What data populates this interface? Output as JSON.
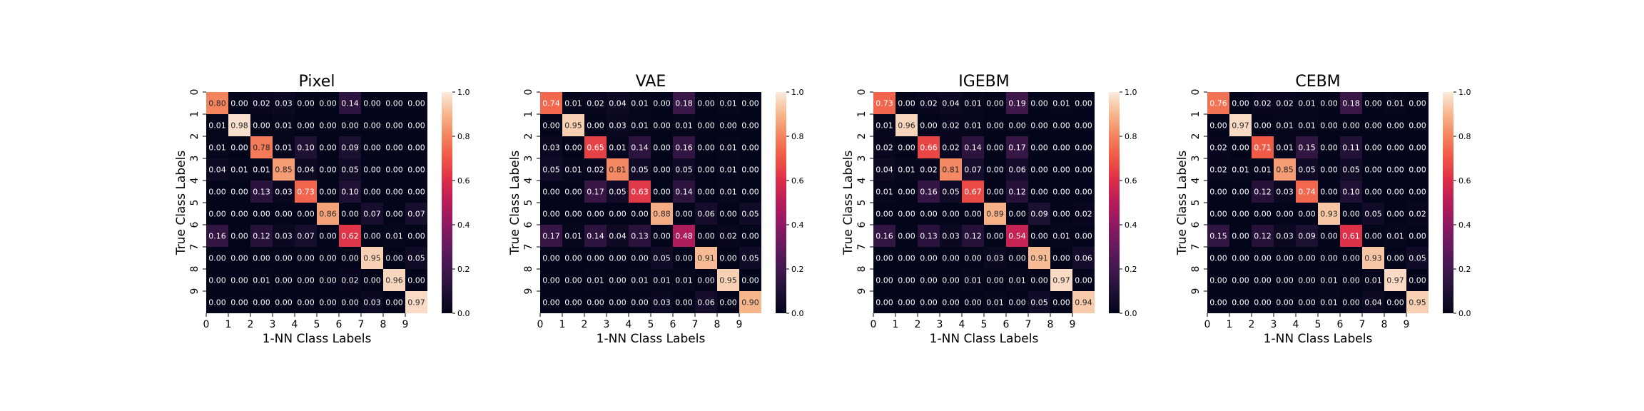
{
  "chart_data": [
    {
      "type": "heatmap",
      "title": "Pixel",
      "xlabel": "1-NN Class Labels",
      "ylabel": "True Class Labels",
      "x_ticks": [
        "0",
        "1",
        "2",
        "3",
        "4",
        "5",
        "6",
        "7",
        "8",
        "9"
      ],
      "y_ticks": [
        "0",
        "1",
        "2",
        "3",
        "4",
        "5",
        "6",
        "7",
        "8",
        "9"
      ],
      "colorbar": {
        "range": [
          0,
          1
        ],
        "ticks": [
          "0.0",
          "0.2",
          "0.4",
          "0.6",
          "0.8",
          "1.0"
        ]
      },
      "cell_labels": [
        [
          "0.80",
          "0.00",
          "0.02",
          "0.03",
          "0.00",
          "0.00",
          "0.14",
          "0.00",
          "0.00",
          "0.00"
        ],
        [
          "0.01",
          "0.98",
          "0.00",
          "0.01",
          "0.00",
          "0.00",
          "0.00",
          "0.00",
          "0.00",
          "0.00"
        ],
        [
          "0.01",
          "0.00",
          "0.78",
          "0.01",
          "0.10",
          "0.00",
          "0.09",
          "0.00",
          "0.00",
          "0.00"
        ],
        [
          "0.04",
          "0.01",
          "0.01",
          "0.85",
          "0.04",
          "0.00",
          "0.05",
          "0.00",
          "0.00",
          "0.00"
        ],
        [
          "0.00",
          "0.00",
          "0.13",
          "0.03",
          "0.73",
          "0.00",
          "0.10",
          "0.00",
          "0.00",
          "0.00"
        ],
        [
          "0.00",
          "0.00",
          "0.00",
          "0.00",
          "0.00",
          "0.86",
          "0.00",
          "0.07",
          "0.00",
          "0.07"
        ],
        [
          "0.16",
          "0.00",
          "0.12",
          "0.03",
          "0.07",
          "0.00",
          "0.62",
          "0.00",
          "0.01",
          "0.00"
        ],
        [
          "0.00",
          "0.00",
          "0.00",
          "0.00",
          "0.00",
          "0.00",
          "0.00",
          "0.95",
          "0.00",
          "0.05"
        ],
        [
          "0.00",
          "0.00",
          "0.01",
          "0.00",
          "0.00",
          "0.00",
          "0.02",
          "0.00",
          "0.96",
          "0.00"
        ],
        [
          "0.00",
          "0.00",
          "0.00",
          "0.00",
          "0.00",
          "0.00",
          "0.00",
          "0.03",
          "0.00",
          "0.97"
        ]
      ]
    },
    {
      "type": "heatmap",
      "title": "VAE",
      "xlabel": "1-NN Class Labels",
      "ylabel": "True Class Labels",
      "x_ticks": [
        "0",
        "1",
        "2",
        "3",
        "4",
        "5",
        "6",
        "7",
        "8",
        "9"
      ],
      "y_ticks": [
        "0",
        "1",
        "2",
        "3",
        "4",
        "5",
        "6",
        "7",
        "8",
        "9"
      ],
      "colorbar": {
        "range": [
          0,
          1
        ],
        "ticks": [
          "0.0",
          "0.2",
          "0.4",
          "0.6",
          "0.8",
          "1.0"
        ]
      },
      "cell_labels": [
        [
          "0.74",
          "0.01",
          "0.02",
          "0.04",
          "0.01",
          "0.00",
          "0.18",
          "0.00",
          "0.01",
          "0.00"
        ],
        [
          "0.00",
          "0.95",
          "0.00",
          "0.03",
          "0.01",
          "0.00",
          "0.01",
          "0.00",
          "0.00",
          "0.00"
        ],
        [
          "0.03",
          "0.00",
          "0.65",
          "0.01",
          "0.14",
          "0.00",
          "0.16",
          "0.00",
          "0.01",
          "0.00"
        ],
        [
          "0.05",
          "0.01",
          "0.02",
          "0.81",
          "0.05",
          "0.00",
          "0.05",
          "0.00",
          "0.01",
          "0.00"
        ],
        [
          "0.00",
          "0.00",
          "0.17",
          "0.05",
          "0.63",
          "0.00",
          "0.14",
          "0.00",
          "0.01",
          "0.00"
        ],
        [
          "0.00",
          "0.00",
          "0.00",
          "0.00",
          "0.00",
          "0.88",
          "0.00",
          "0.06",
          "0.00",
          "0.05"
        ],
        [
          "0.17",
          "0.01",
          "0.14",
          "0.04",
          "0.13",
          "0.00",
          "0.48",
          "0.00",
          "0.02",
          "0.00"
        ],
        [
          "0.00",
          "0.00",
          "0.00",
          "0.00",
          "0.00",
          "0.05",
          "0.00",
          "0.91",
          "0.00",
          "0.05"
        ],
        [
          "0.00",
          "0.00",
          "0.01",
          "0.00",
          "0.01",
          "0.01",
          "0.01",
          "0.00",
          "0.95",
          "0.00"
        ],
        [
          "0.00",
          "0.00",
          "0.00",
          "0.00",
          "0.00",
          "0.03",
          "0.00",
          "0.06",
          "0.00",
          "0.90"
        ]
      ]
    },
    {
      "type": "heatmap",
      "title": "IGEBM",
      "xlabel": "1-NN Class Labels",
      "ylabel": "True Class Labels",
      "x_ticks": [
        "0",
        "1",
        "2",
        "3",
        "4",
        "5",
        "6",
        "7",
        "8",
        "9"
      ],
      "y_ticks": [
        "0",
        "1",
        "2",
        "3",
        "4",
        "5",
        "6",
        "7",
        "8",
        "9"
      ],
      "colorbar": {
        "range": [
          0,
          1
        ],
        "ticks": [
          "0.0",
          "0.2",
          "0.4",
          "0.6",
          "0.8",
          "1.0"
        ]
      },
      "cell_labels": [
        [
          "0.73",
          "0.00",
          "0.02",
          "0.04",
          "0.01",
          "0.00",
          "0.19",
          "0.00",
          "0.01",
          "0.00"
        ],
        [
          "0.01",
          "0.96",
          "0.00",
          "0.02",
          "0.01",
          "0.00",
          "0.00",
          "0.00",
          "0.00",
          "0.00"
        ],
        [
          "0.02",
          "0.00",
          "0.66",
          "0.02",
          "0.14",
          "0.00",
          "0.17",
          "0.00",
          "0.00",
          "0.00"
        ],
        [
          "0.04",
          "0.01",
          "0.02",
          "0.81",
          "0.07",
          "0.00",
          "0.06",
          "0.00",
          "0.00",
          "0.00"
        ],
        [
          "0.01",
          "0.00",
          "0.16",
          "0.05",
          "0.67",
          "0.00",
          "0.12",
          "0.00",
          "0.00",
          "0.00"
        ],
        [
          "0.00",
          "0.00",
          "0.00",
          "0.00",
          "0.00",
          "0.89",
          "0.00",
          "0.09",
          "0.00",
          "0.02"
        ],
        [
          "0.16",
          "0.00",
          "0.13",
          "0.03",
          "0.12",
          "0.00",
          "0.54",
          "0.00",
          "0.01",
          "0.00"
        ],
        [
          "0.00",
          "0.00",
          "0.00",
          "0.00",
          "0.00",
          "0.03",
          "0.00",
          "0.91",
          "0.00",
          "0.06"
        ],
        [
          "0.00",
          "0.00",
          "0.00",
          "0.00",
          "0.01",
          "0.00",
          "0.01",
          "0.00",
          "0.97",
          "0.00"
        ],
        [
          "0.00",
          "0.00",
          "0.00",
          "0.00",
          "0.00",
          "0.01",
          "0.00",
          "0.05",
          "0.00",
          "0.94"
        ]
      ]
    },
    {
      "type": "heatmap",
      "title": "CEBM",
      "xlabel": "1-NN Class Labels",
      "ylabel": "True Class Labels",
      "x_ticks": [
        "0",
        "1",
        "2",
        "3",
        "4",
        "5",
        "6",
        "7",
        "8",
        "9"
      ],
      "y_ticks": [
        "0",
        "1",
        "2",
        "3",
        "4",
        "5",
        "6",
        "7",
        "8",
        "9"
      ],
      "colorbar": {
        "range": [
          0,
          1
        ],
        "ticks": [
          "0.0",
          "0.2",
          "0.4",
          "0.6",
          "0.8",
          "1.0"
        ]
      },
      "cell_labels": [
        [
          "0.76",
          "0.00",
          "0.02",
          "0.02",
          "0.01",
          "0.00",
          "0.18",
          "0.00",
          "0.01",
          "0.00"
        ],
        [
          "0.00",
          "0.97",
          "0.00",
          "0.01",
          "0.01",
          "0.00",
          "0.00",
          "0.00",
          "0.00",
          "0.00"
        ],
        [
          "0.02",
          "0.00",
          "0.71",
          "0.01",
          "0.15",
          "0.00",
          "0.11",
          "0.00",
          "0.00",
          "0.00"
        ],
        [
          "0.02",
          "0.01",
          "0.01",
          "0.85",
          "0.05",
          "0.00",
          "0.05",
          "0.00",
          "0.00",
          "0.00"
        ],
        [
          "0.00",
          "0.00",
          "0.12",
          "0.03",
          "0.74",
          "0.00",
          "0.10",
          "0.00",
          "0.00",
          "0.00"
        ],
        [
          "0.00",
          "0.00",
          "0.00",
          "0.00",
          "0.00",
          "0.93",
          "0.00",
          "0.05",
          "0.00",
          "0.02"
        ],
        [
          "0.15",
          "0.00",
          "0.12",
          "0.03",
          "0.09",
          "0.00",
          "0.61",
          "0.00",
          "0.01",
          "0.00"
        ],
        [
          "0.00",
          "0.00",
          "0.00",
          "0.00",
          "0.00",
          "0.00",
          "0.00",
          "0.93",
          "0.00",
          "0.05"
        ],
        [
          "0.00",
          "0.00",
          "0.00",
          "0.00",
          "0.00",
          "0.01",
          "0.00",
          "0.01",
          "0.97",
          "0.00"
        ],
        [
          "0.00",
          "0.00",
          "0.00",
          "0.00",
          "0.00",
          "0.01",
          "0.00",
          "0.04",
          "0.00",
          "0.95"
        ]
      ]
    }
  ]
}
